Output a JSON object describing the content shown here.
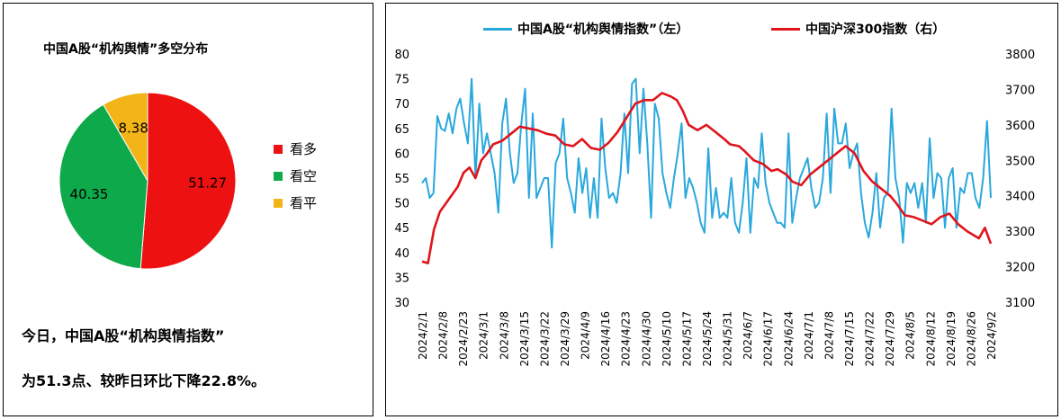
{
  "left": {
    "title": "中国A股“机构舆情”多空分布",
    "legend": [
      {
        "label": "看多",
        "color": "#ee1111"
      },
      {
        "label": "看空",
        "color": "#0ea94a"
      },
      {
        "label": "看平",
        "color": "#f2b416"
      }
    ],
    "summary_line1": "今日，中国A股“机构舆情指数”",
    "summary_line2": "为51.3点、较昨日环比下降22.8%。"
  },
  "chart_data": [
    {
      "type": "pie",
      "labels": [
        "看多",
        "看空",
        "看平"
      ],
      "values": [
        51.27,
        40.35,
        8.38
      ],
      "value_labels": [
        "51.27",
        "40.35",
        "8.38"
      ],
      "colors": [
        "#ee1111",
        "#0ea94a",
        "#f2b416"
      ],
      "title": "中国A股“机构舆情”多空分布"
    },
    {
      "type": "line",
      "legend_position": "top",
      "grid": false,
      "series": [
        {
          "name": "中国A股“机构舆情指数”（左）",
          "axis": "left",
          "color": "#29a8dc",
          "values": [
            54,
            55,
            51,
            52,
            67.5,
            65,
            64.5,
            68,
            64,
            69,
            71,
            66,
            62,
            75,
            55,
            70,
            60,
            64,
            60,
            56,
            48,
            66,
            71,
            60,
            54,
            56,
            66,
            73,
            51,
            68,
            51,
            53,
            55,
            55,
            41,
            58,
            60,
            67,
            55,
            52,
            48,
            59,
            52,
            57,
            47,
            55,
            47,
            67,
            57,
            51,
            52,
            50,
            56,
            68,
            56,
            74,
            75,
            60,
            73,
            62,
            47,
            70,
            67,
            56,
            52,
            49,
            55,
            60,
            66,
            51,
            55,
            53,
            50,
            46,
            44,
            61,
            47,
            53,
            47,
            48,
            47,
            55,
            46,
            44,
            50,
            59,
            44,
            55,
            53,
            64,
            54,
            50,
            48,
            46,
            46,
            45,
            64,
            46,
            51,
            55,
            57,
            59,
            53,
            49,
            50,
            55,
            68,
            52,
            69,
            62,
            62,
            66,
            57,
            60,
            62,
            52,
            46,
            43,
            48,
            56,
            45,
            51,
            52,
            69,
            55,
            51,
            42,
            54,
            52,
            54,
            49,
            54,
            46,
            63,
            51,
            56,
            55,
            45,
            55,
            57,
            45,
            53,
            52,
            56,
            56,
            51,
            49,
            55,
            66.5,
            51
          ]
        },
        {
          "name": "中国沪深300指数（右）",
          "axis": "right",
          "color": "#e0141b",
          "points": [
            [
              0,
              3215
            ],
            [
              2,
              3210
            ],
            [
              4,
              3305
            ],
            [
              6,
              3355
            ],
            [
              9,
              3390
            ],
            [
              12,
              3425
            ],
            [
              14,
              3465
            ],
            [
              16,
              3480
            ],
            [
              18,
              3450
            ],
            [
              20,
              3500
            ],
            [
              22,
              3520
            ],
            [
              24,
              3545
            ],
            [
              27,
              3555
            ],
            [
              30,
              3575
            ],
            [
              33,
              3595
            ],
            [
              36,
              3590
            ],
            [
              39,
              3585
            ],
            [
              42,
              3575
            ],
            [
              45,
              3570
            ],
            [
              48,
              3545
            ],
            [
              51,
              3540
            ],
            [
              54,
              3560
            ],
            [
              57,
              3535
            ],
            [
              60,
              3530
            ],
            [
              63,
              3550
            ],
            [
              66,
              3580
            ],
            [
              69,
              3620
            ],
            [
              72,
              3660
            ],
            [
              75,
              3670
            ],
            [
              78,
              3670
            ],
            [
              81,
              3690
            ],
            [
              84,
              3680
            ],
            [
              86,
              3670
            ],
            [
              88,
              3640
            ],
            [
              90,
              3600
            ],
            [
              93,
              3585
            ],
            [
              96,
              3600
            ],
            [
              99,
              3580
            ],
            [
              102,
              3560
            ],
            [
              104,
              3545
            ],
            [
              107,
              3540
            ],
            [
              109,
              3525
            ],
            [
              112,
              3500
            ],
            [
              115,
              3490
            ],
            [
              118,
              3470
            ],
            [
              120,
              3475
            ],
            [
              123,
              3460
            ],
            [
              125,
              3440
            ],
            [
              128,
              3430
            ],
            [
              131,
              3460
            ],
            [
              134,
              3480
            ],
            [
              137,
              3500
            ],
            [
              140,
              3520
            ],
            [
              143,
              3540
            ],
            [
              146,
              3520
            ],
            [
              149,
              3470
            ],
            [
              152,
              3440
            ],
            [
              155,
              3420
            ],
            [
              158,
              3400
            ],
            [
              160,
              3380
            ],
            [
              163,
              3345
            ],
            [
              166,
              3340
            ],
            [
              169,
              3330
            ],
            [
              172,
              3320
            ],
            [
              175,
              3340
            ],
            [
              178,
              3350
            ],
            [
              181,
              3320
            ],
            [
              184,
              3300
            ],
            [
              186,
              3290
            ],
            [
              188,
              3280
            ],
            [
              190,
              3310
            ],
            [
              192,
              3265
            ]
          ]
        }
      ],
      "x_labels": [
        "2024/2/1",
        "2024/2/8",
        "2024/2/23",
        "2024/3/1",
        "2024/3/8",
        "2024/3/15",
        "2024/3/22",
        "2024/3/29",
        "2024/4/9",
        "2024/4/16",
        "2024/4/23",
        "2024/4/30",
        "2024/5/10",
        "2024/5/17",
        "2024/5/24",
        "2024/5/31",
        "2024/6/7",
        "2024/6/17",
        "2024/6/24",
        "2024/7/1",
        "2024/7/8",
        "2024/7/15",
        "2024/7/22",
        "2024/7/29",
        "2024/8/5",
        "2024/8/12",
        "2024/8/19",
        "2024/8/26",
        "2024/9/2"
      ],
      "y_left": {
        "min": 30,
        "max": 80,
        "ticks": [
          30,
          35,
          40,
          45,
          50,
          55,
          60,
          65,
          70,
          75,
          80
        ]
      },
      "y_right": {
        "min": 3100,
        "max": 3800,
        "ticks": [
          3100,
          3200,
          3300,
          3400,
          3500,
          3600,
          3700,
          3800
        ]
      }
    }
  ]
}
